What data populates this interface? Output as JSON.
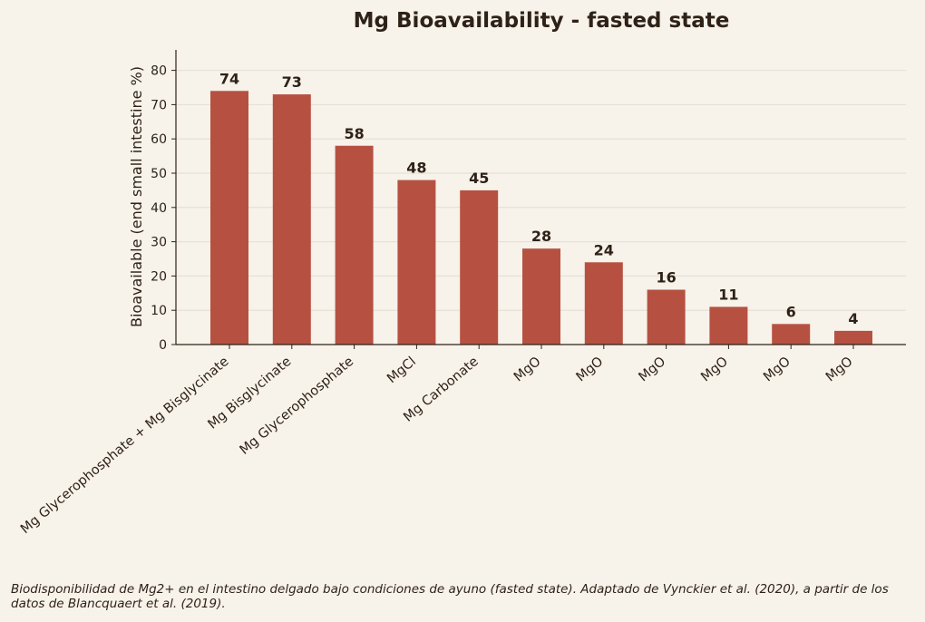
{
  "chart_data": {
    "type": "bar",
    "title": "Mg Bioavailability - fasted state",
    "xlabel": "",
    "ylabel": "Bioavailable (end small intestine %)",
    "categories": [
      "Mg Glycerophosphate + Mg Bisglycinate",
      "Mg Bisglycinate",
      "Mg Glycerophosphate",
      "MgCl",
      "Mg Carbonate",
      "MgO",
      "MgO",
      "MgO",
      "MgO",
      "MgO",
      "MgO"
    ],
    "values": [
      74,
      73,
      58,
      48,
      45,
      28,
      24,
      16,
      11,
      6,
      4
    ],
    "ylim": [
      0,
      86
    ],
    "yticks": [
      0,
      10,
      20,
      30,
      40,
      50,
      60,
      70,
      80
    ],
    "grid": true,
    "colors": {
      "bar": "#b65142",
      "background": "#f7f2ea",
      "text": "#2e2218",
      "grid": "#e3ddd3"
    }
  },
  "caption": "Biodisponibilidad de Mg2+ en el intestino delgado bajo condiciones de ayuno (fasted state). Adaptado de Vynckier et al. (2020), a partir de los datos de Blancquaert et al. (2019)."
}
